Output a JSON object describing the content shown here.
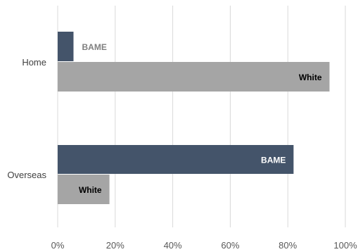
{
  "chart_data": {
    "type": "bar",
    "orientation": "horizontal",
    "categories": [
      "Home",
      "Overseas"
    ],
    "series": [
      {
        "name": "BAME",
        "values": [
          5.5,
          82
        ],
        "color": "#44546a"
      },
      {
        "name": "White",
        "values": [
          94.5,
          18
        ],
        "color": "#a5a5a5"
      }
    ],
    "xlim": [
      0,
      100
    ],
    "xticks": [
      "0%",
      "20%",
      "40%",
      "60%",
      "80%",
      "100%"
    ],
    "grid": true,
    "legend": "none",
    "data_labels": {
      "Home": [
        "BAME",
        "White"
      ],
      "Overseas": [
        "BAME",
        "White"
      ]
    }
  }
}
